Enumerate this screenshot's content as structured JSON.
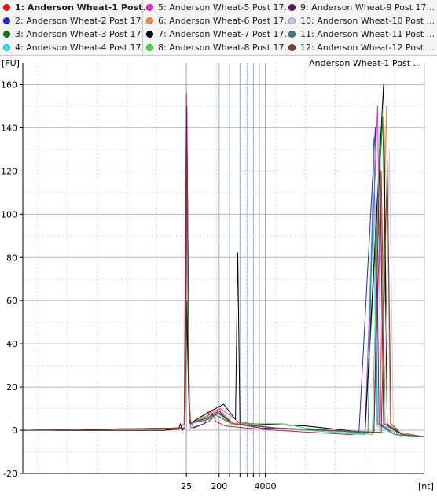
{
  "legend": {
    "items": [
      {
        "label": "1: Anderson Wheat-1 Post...",
        "color": "#e8191b",
        "selected": true
      },
      {
        "label": "2: Anderson Wheat-2 Post 17...",
        "color": "#1f2bd6"
      },
      {
        "label": "3: Anderson Wheat-3 Post 17...",
        "color": "#137a1e"
      },
      {
        "label": "4: Anderson Wheat-4 Post 17...",
        "color": "#2fe3ee"
      },
      {
        "label": "5: Anderson Wheat-5 Post 17...",
        "color": "#e62ae6"
      },
      {
        "label": "6: Anderson Wheat-6 Post 17...",
        "color": "#f08a3c"
      },
      {
        "label": "7: Anderson Wheat-7 Post 17...",
        "color": "#000000"
      },
      {
        "label": "8: Anderson Wheat-8 Post 17...",
        "color": "#2fe63a"
      },
      {
        "label": "9: Anderson Wheat-9 Post 17...",
        "color": "#6b126b"
      },
      {
        "label": "10: Anderson Wheat-10 Post ...",
        "color": "#c8c6ee"
      },
      {
        "label": "11: Anderson Wheat-11 Post ...",
        "color": "#3e7f80"
      },
      {
        "label": "12: Anderson Wheat-12 Post ...",
        "color": "#7f3e2c"
      }
    ]
  },
  "chart_data": {
    "type": "line",
    "title": "Anderson Wheat-1 Post ...",
    "ylabel": "[FU]",
    "xlabel": "[nt]",
    "ylim": [
      -20,
      170
    ],
    "yticks": [
      -20,
      0,
      20,
      40,
      60,
      80,
      100,
      120,
      140,
      160
    ],
    "xlim": [
      13,
      40
    ],
    "xtick_labels": [
      {
        "x": 24,
        "label": "25"
      },
      {
        "x": 26.2,
        "label": "200"
      },
      {
        "x": 29.3,
        "label": "4000"
      }
    ],
    "marker_lines_x": [
      24,
      26.2,
      26.9,
      27.6,
      28.1,
      28.5,
      28.9,
      29.3
    ],
    "grid": true,
    "series": [
      {
        "color": "#e8191b",
        "points": [
          [
            13,
            0
          ],
          [
            22.5,
            0
          ],
          [
            23.5,
            0.5
          ],
          [
            23.85,
            3
          ],
          [
            24,
            156
          ],
          [
            24.12,
            25
          ],
          [
            24.3,
            1
          ],
          [
            25.2,
            3
          ],
          [
            25.6,
            9
          ],
          [
            26,
            4
          ],
          [
            26.6,
            2
          ],
          [
            28,
            1
          ],
          [
            30,
            0
          ],
          [
            35,
            -2
          ],
          [
            36.6,
            -1
          ],
          [
            37.1,
            120
          ],
          [
            37.35,
            3
          ],
          [
            38.2,
            -1
          ],
          [
            40,
            -3
          ]
        ]
      },
      {
        "color": "#1f2bd6",
        "points": [
          [
            13,
            0
          ],
          [
            23.9,
            1
          ],
          [
            24.02,
            148
          ],
          [
            24.2,
            5
          ],
          [
            24.5,
            1
          ],
          [
            25.5,
            4
          ],
          [
            26.1,
            8
          ],
          [
            27.2,
            3
          ],
          [
            29,
            1
          ],
          [
            33,
            0
          ],
          [
            35.6,
            -1
          ],
          [
            36.7,
            140
          ],
          [
            36.95,
            3
          ],
          [
            38,
            -2
          ],
          [
            40,
            -3
          ]
        ]
      },
      {
        "color": "#137a1e",
        "points": [
          [
            13,
            0
          ],
          [
            23.9,
            1
          ],
          [
            24.05,
            60
          ],
          [
            24.2,
            3
          ],
          [
            25.4,
            5
          ],
          [
            26,
            7
          ],
          [
            27,
            3
          ],
          [
            30,
            1
          ],
          [
            36,
            -2
          ],
          [
            37.2,
            145
          ],
          [
            37.5,
            3
          ],
          [
            38.5,
            -2
          ],
          [
            40,
            -3
          ]
        ]
      },
      {
        "color": "#2fe3ee",
        "points": [
          [
            13,
            0
          ],
          [
            23.9,
            1
          ],
          [
            24.05,
            95
          ],
          [
            24.2,
            3
          ],
          [
            25.5,
            6
          ],
          [
            26.2,
            9
          ],
          [
            27,
            3
          ],
          [
            30,
            1
          ],
          [
            36,
            -2
          ],
          [
            36.55,
            110
          ],
          [
            36.8,
            2
          ],
          [
            38,
            -2
          ],
          [
            40,
            -3
          ]
        ]
      },
      {
        "color": "#e62ae6",
        "points": [
          [
            13,
            0
          ],
          [
            23.9,
            1
          ],
          [
            24.02,
            150
          ],
          [
            24.2,
            3
          ],
          [
            25.5,
            7
          ],
          [
            26.3,
            10
          ],
          [
            27.5,
            4
          ],
          [
            28.4,
            3
          ],
          [
            32,
            2
          ],
          [
            36,
            -1
          ],
          [
            36.85,
            150
          ],
          [
            37.1,
            3
          ],
          [
            38,
            -2
          ],
          [
            40,
            -3
          ]
        ]
      },
      {
        "color": "#f08a3c",
        "points": [
          [
            13,
            0
          ],
          [
            23.9,
            1
          ],
          [
            24.03,
            140
          ],
          [
            24.2,
            3
          ],
          [
            25.5,
            8
          ],
          [
            26.2,
            10
          ],
          [
            27,
            4
          ],
          [
            30,
            1
          ],
          [
            37,
            -1
          ],
          [
            37.45,
            150
          ],
          [
            37.7,
            3
          ],
          [
            38.5,
            -2
          ],
          [
            40,
            -3
          ]
        ]
      },
      {
        "color": "#000000",
        "points": [
          [
            13,
            0
          ],
          [
            22.5,
            0
          ],
          [
            23.5,
            1
          ],
          [
            23.6,
            3
          ],
          [
            23.7,
            0
          ],
          [
            23.9,
            1
          ],
          [
            24,
            60
          ],
          [
            24.2,
            3
          ],
          [
            25.4,
            8
          ],
          [
            26.5,
            12
          ],
          [
            27.3,
            5
          ],
          [
            27.45,
            82
          ],
          [
            27.6,
            3
          ],
          [
            28.5,
            3
          ],
          [
            32,
            2
          ],
          [
            36,
            -1
          ],
          [
            37.25,
            160
          ],
          [
            37.5,
            2
          ],
          [
            38.5,
            -2
          ],
          [
            40,
            -3
          ]
        ]
      },
      {
        "color": "#2fe63a",
        "points": [
          [
            13,
            0
          ],
          [
            23.9,
            1
          ],
          [
            24.05,
            120
          ],
          [
            24.2,
            3
          ],
          [
            25.6,
            7
          ],
          [
            26.3,
            8
          ],
          [
            27.2,
            3
          ],
          [
            30.5,
            3
          ],
          [
            32,
            1
          ],
          [
            36.5,
            -2
          ],
          [
            37.0,
            140
          ],
          [
            37.3,
            2
          ],
          [
            38.5,
            -3
          ],
          [
            40,
            -3
          ]
        ]
      },
      {
        "color": "#6b126b",
        "points": [
          [
            13,
            0
          ],
          [
            23.9,
            1
          ],
          [
            24.02,
            150
          ],
          [
            24.2,
            3
          ],
          [
            25.5,
            6
          ],
          [
            26.2,
            9
          ],
          [
            27,
            3
          ],
          [
            30,
            1
          ],
          [
            36.6,
            -1
          ],
          [
            37.0,
            130
          ],
          [
            37.25,
            3
          ],
          [
            38.5,
            -2
          ],
          [
            40,
            -3
          ]
        ]
      },
      {
        "color": "#c8c6ee",
        "points": [
          [
            13,
            0
          ],
          [
            23.9,
            1
          ],
          [
            24.05,
            100
          ],
          [
            24.2,
            3
          ],
          [
            25.5,
            5
          ],
          [
            26.2,
            7
          ],
          [
            27,
            3
          ],
          [
            30,
            1
          ],
          [
            37.3,
            -1
          ],
          [
            37.65,
            130
          ],
          [
            37.9,
            2
          ],
          [
            38.8,
            -2
          ],
          [
            40,
            -3
          ]
        ]
      },
      {
        "color": "#3e7f80",
        "points": [
          [
            13,
            0
          ],
          [
            23.9,
            1
          ],
          [
            24.05,
            110
          ],
          [
            24.2,
            3
          ],
          [
            25.5,
            5
          ],
          [
            26.2,
            8
          ],
          [
            27,
            3
          ],
          [
            30,
            1
          ],
          [
            36.2,
            -1
          ],
          [
            36.6,
            135
          ],
          [
            36.85,
            3
          ],
          [
            38,
            -2
          ],
          [
            40,
            -3
          ]
        ]
      },
      {
        "color": "#7f3e2c",
        "points": [
          [
            13,
            0
          ],
          [
            23.9,
            1
          ],
          [
            24.05,
            130
          ],
          [
            24.2,
            3
          ],
          [
            25.5,
            6
          ],
          [
            26.2,
            8
          ],
          [
            27.2,
            3
          ],
          [
            30,
            1
          ],
          [
            37.1,
            -1
          ],
          [
            37.5,
            125
          ],
          [
            37.75,
            3
          ],
          [
            38.5,
            -2
          ],
          [
            40,
            -3
          ]
        ]
      }
    ]
  }
}
